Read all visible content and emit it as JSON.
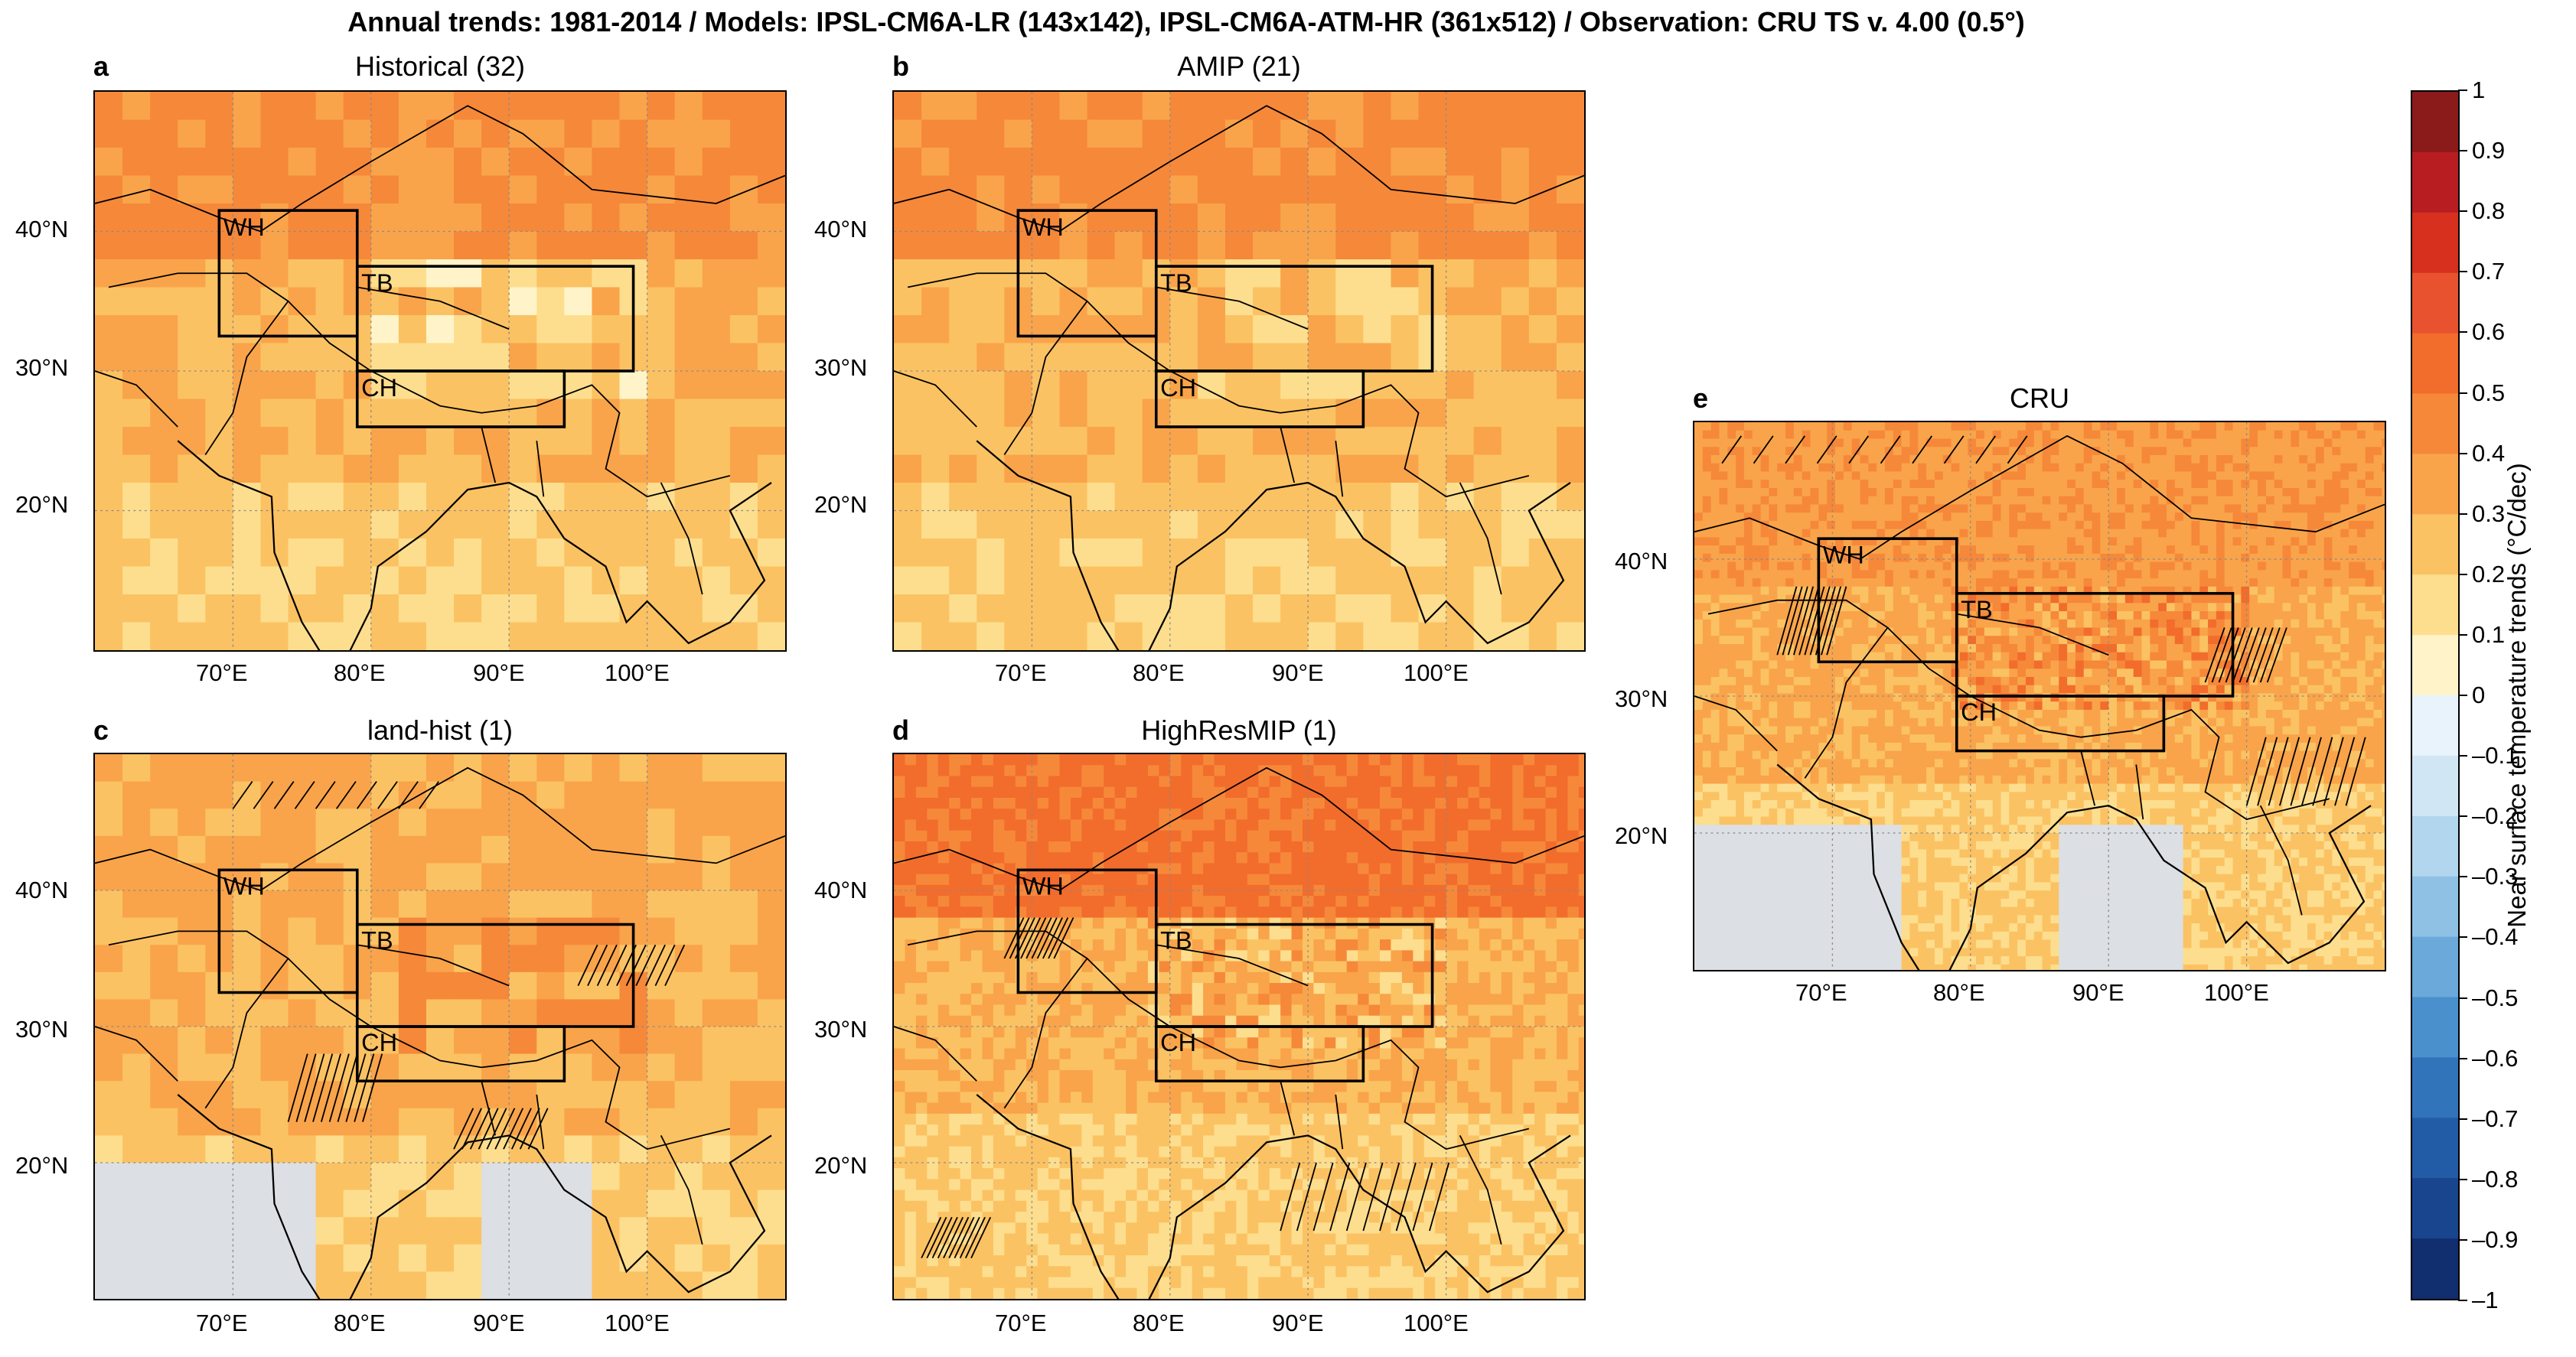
{
  "figure": {
    "title": "Annual trends: 1981-2014 / Models: IPSL-CM6A-LR (143x142), IPSL-CM6A-ATM-HR (361x512) / Observation: CRU TS v. 4.00 (0.5°)"
  },
  "panels": [
    {
      "letter": "a",
      "title": "Historical (32)",
      "mean_trend": 0.3,
      "north_trend": 0.5,
      "plateau_trend": 0.2
    },
    {
      "letter": "b",
      "title": "AMIP (21)",
      "mean_trend": 0.28,
      "north_trend": 0.5,
      "plateau_trend": 0.25
    },
    {
      "letter": "c",
      "title": "land-hist (1)",
      "mean_trend": 0.3,
      "north_trend": 0.4,
      "plateau_trend": 0.35
    },
    {
      "letter": "d",
      "title": "HighResMIP (1)",
      "mean_trend": 0.3,
      "north_trend": 0.6,
      "plateau_trend": 0.3
    },
    {
      "letter": "e",
      "title": "CRU",
      "mean_trend": 0.32,
      "north_trend": 0.45,
      "plateau_trend": 0.4
    }
  ],
  "regions": [
    {
      "label": "WH"
    },
    {
      "label": "TB"
    },
    {
      "label": "CH"
    }
  ],
  "axes": {
    "lon_ticks": [
      "70°E",
      "80°E",
      "90°E",
      "100°E"
    ],
    "lat_ticks": [
      "40°N",
      "30°N",
      "20°N"
    ],
    "lon_range": [
      60,
      110
    ],
    "lat_range": [
      10,
      50
    ]
  },
  "colorbar": {
    "label": "Near surface temperature trends (°C/dec)",
    "ticks": [
      "1",
      "0.9",
      "0.8",
      "0.7",
      "0.6",
      "0.5",
      "0.4",
      "0.3",
      "0.2",
      "0.1",
      "0",
      "–0.1",
      "–0.2",
      "–0.3",
      "–0.4",
      "–0.5",
      "–0.6",
      "–0.7",
      "–0.8",
      "–0.9",
      "–1"
    ],
    "colors": [
      "#8b1a1a",
      "#b81d22",
      "#d7301f",
      "#e9522f",
      "#f26c2c",
      "#f6883a",
      "#f9a44a",
      "#fbc263",
      "#fdde8e",
      "#fff4c9",
      "#e8f3fb",
      "#d1e6f5",
      "#b3d6ef",
      "#8fc1e5",
      "#6aa9da",
      "#4a90cc",
      "#3174ba",
      "#225ba6",
      "#18458e",
      "#112e6e"
    ]
  }
}
